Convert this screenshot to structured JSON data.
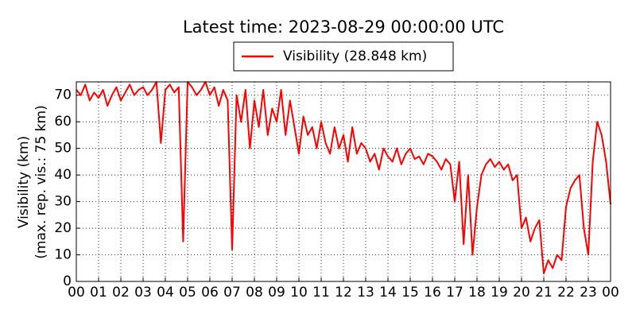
{
  "chart_data": {
    "type": "line",
    "title": "Latest time: 2023-08-29 00:00:00 UTC",
    "y_label_lines": [
      "Visibility (km)",
      "(max. rep. vis.: 75 km)"
    ],
    "x": [
      0,
      0.2,
      0.4,
      0.6,
      0.8,
      1,
      1.2,
      1.4,
      1.6,
      1.8,
      2,
      2.2,
      2.4,
      2.6,
      2.8,
      3,
      3.2,
      3.4,
      3.6,
      3.8,
      4,
      4.2,
      4.4,
      4.6,
      4.8,
      5,
      5.2,
      5.4,
      5.6,
      5.8,
      6,
      6.2,
      6.4,
      6.6,
      6.8,
      7,
      7.2,
      7.4,
      7.6,
      7.8,
      8,
      8.2,
      8.4,
      8.6,
      8.8,
      9,
      9.2,
      9.4,
      9.6,
      9.8,
      10,
      10.2,
      10.4,
      10.6,
      10.8,
      11,
      11.2,
      11.4,
      11.6,
      11.8,
      12,
      12.2,
      12.4,
      12.6,
      12.8,
      13,
      13.2,
      13.4,
      13.6,
      13.8,
      14,
      14.2,
      14.4,
      14.6,
      14.8,
      15,
      15.2,
      15.4,
      15.6,
      15.8,
      16,
      16.2,
      16.4,
      16.6,
      16.8,
      17,
      17.2,
      17.4,
      17.6,
      17.8,
      18,
      18.2,
      18.4,
      18.6,
      18.8,
      19,
      19.2,
      19.4,
      19.6,
      19.8,
      20,
      20.2,
      20.4,
      20.6,
      20.8,
      21,
      21.2,
      21.4,
      21.6,
      21.8,
      22,
      22.2,
      22.4,
      22.6,
      22.8,
      23,
      23.2,
      23.4,
      23.6,
      23.8,
      24
    ],
    "series": [
      {
        "name": "Visibility (28.848 km)",
        "color": "#ff0000",
        "values": [
          72,
          70,
          74,
          68,
          71,
          69,
          72,
          66,
          70,
          73,
          68,
          71,
          74,
          70,
          72,
          73,
          70,
          72,
          75,
          52,
          72,
          74,
          71,
          73,
          15,
          75,
          73,
          70,
          72,
          75,
          70,
          73,
          66,
          72,
          68,
          12,
          70,
          60,
          72,
          50,
          68,
          58,
          72,
          55,
          65,
          60,
          72,
          55,
          68,
          58,
          48,
          62,
          55,
          58,
          50,
          60,
          52,
          48,
          58,
          50,
          55,
          45,
          58,
          48,
          52,
          50,
          45,
          48,
          42,
          50,
          47,
          45,
          50,
          44,
          48,
          50,
          46,
          47,
          44,
          48,
          47,
          45,
          42,
          46,
          44,
          30,
          45,
          14,
          40,
          10,
          28,
          40,
          44,
          46,
          43,
          45,
          42,
          44,
          38,
          40,
          20,
          24,
          15,
          20,
          23,
          3,
          8,
          5,
          10,
          8,
          28,
          35,
          38,
          40,
          20,
          10,
          45,
          60,
          55,
          45,
          29
        ]
      }
    ],
    "xlim": [
      0,
      24
    ],
    "xticks": [
      {
        "value": 0,
        "label": "00"
      },
      {
        "value": 1,
        "label": "01"
      },
      {
        "value": 2,
        "label": "02"
      },
      {
        "value": 3,
        "label": "03"
      },
      {
        "value": 4,
        "label": "04"
      },
      {
        "value": 5,
        "label": "05"
      },
      {
        "value": 6,
        "label": "06"
      },
      {
        "value": 7,
        "label": "07"
      },
      {
        "value": 8,
        "label": "08"
      },
      {
        "value": 9,
        "label": "09"
      },
      {
        "value": 10,
        "label": "10"
      },
      {
        "value": 11,
        "label": "11"
      },
      {
        "value": 12,
        "label": "12"
      },
      {
        "value": 13,
        "label": "13"
      },
      {
        "value": 14,
        "label": "14"
      },
      {
        "value": 15,
        "label": "15"
      },
      {
        "value": 16,
        "label": "16"
      },
      {
        "value": 17,
        "label": "17"
      },
      {
        "value": 18,
        "label": "18"
      },
      {
        "value": 19,
        "label": "19"
      },
      {
        "value": 20,
        "label": "20"
      },
      {
        "value": 21,
        "label": "21"
      },
      {
        "value": 22,
        "label": "22"
      },
      {
        "value": 23,
        "label": "23"
      },
      {
        "value": 24,
        "label": "00"
      }
    ],
    "ylim": [
      0,
      75
    ],
    "yticks": [
      0,
      10,
      20,
      30,
      40,
      50,
      60,
      70
    ],
    "grid": true
  }
}
